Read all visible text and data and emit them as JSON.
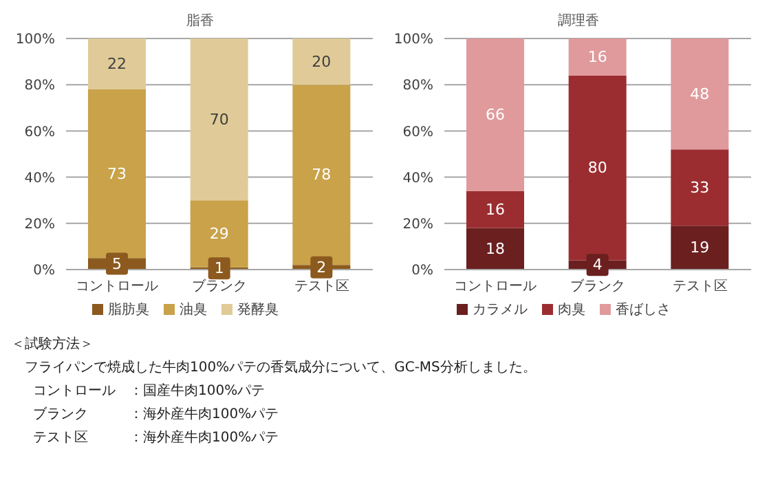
{
  "chart_data": [
    {
      "type": "bar",
      "title": "脂香",
      "categories": [
        "コントロール",
        "ブランク",
        "テスト区"
      ],
      "stacked": true,
      "ylim": [
        0,
        100
      ],
      "yticks": [
        {
          "value": 0,
          "label": "0%"
        },
        {
          "value": 20,
          "label": "20%"
        },
        {
          "value": 40,
          "label": "40%"
        },
        {
          "value": 60,
          "label": "60%"
        },
        {
          "value": 80,
          "label": "80%"
        },
        {
          "value": 100,
          "label": "100%"
        }
      ],
      "grid": "y",
      "legend": "bottom",
      "data_labels": true,
      "series": [
        {
          "name": "脂肪臭",
          "color": "#8c5a1e",
          "values": [
            5,
            1,
            2
          ]
        },
        {
          "name": "油臭",
          "color": "#c9a24a",
          "values": [
            73,
            29,
            78
          ]
        },
        {
          "name": "発酵臭",
          "color": "#e0cb98",
          "values": [
            22,
            70,
            20
          ]
        }
      ],
      "annotations": [
        "＜試験方法＞",
        "フライパンで焼成した牛肉100%パテの香気成分について、GC-MS分析しました。",
        "コントロール　：国産牛肉100%パテ",
        "ブランク　　　：海外産牛肉100%パテ",
        "テスト区　　　：海外産牛肉100%パテ"
      ]
    },
    {
      "type": "bar",
      "title": "調理香",
      "categories": [
        "コントロール",
        "ブランク",
        "テスト区"
      ],
      "stacked": true,
      "ylim": [
        0,
        100
      ],
      "yticks": [
        {
          "value": 0,
          "label": "0%"
        },
        {
          "value": 20,
          "label": "20%"
        },
        {
          "value": 40,
          "label": "40%"
        },
        {
          "value": 60,
          "label": "60%"
        },
        {
          "value": 80,
          "label": "80%"
        },
        {
          "value": 100,
          "label": "100%"
        }
      ],
      "grid": "y",
      "legend": "bottom",
      "data_labels": true,
      "series": [
        {
          "name": "カラメル",
          "color": "#6b1f1f",
          "values": [
            18,
            4,
            19
          ]
        },
        {
          "name": "肉臭",
          "color": "#9b2d30",
          "values": [
            16,
            80,
            33
          ]
        },
        {
          "name": "香ばしさ",
          "color": "#e09a9c",
          "values": [
            66,
            16,
            48
          ]
        }
      ]
    }
  ]
}
